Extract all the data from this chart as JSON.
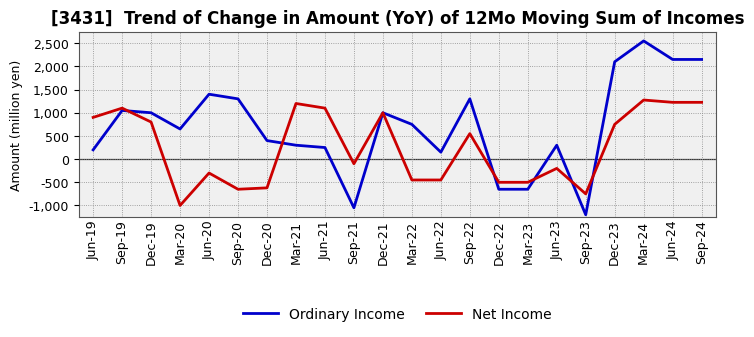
{
  "title": "[3431]  Trend of Change in Amount (YoY) of 12Mo Moving Sum of Incomes",
  "ylabel": "Amount (million yen)",
  "x_labels": [
    "Jun-19",
    "Sep-19",
    "Dec-19",
    "Mar-20",
    "Jun-20",
    "Sep-20",
    "Dec-20",
    "Mar-21",
    "Jun-21",
    "Sep-21",
    "Dec-21",
    "Mar-22",
    "Jun-22",
    "Sep-22",
    "Dec-22",
    "Mar-23",
    "Jun-23",
    "Sep-23",
    "Dec-23",
    "Mar-24",
    "Jun-24",
    "Sep-24"
  ],
  "ordinary_income": [
    200,
    1050,
    1000,
    650,
    1400,
    1300,
    400,
    300,
    250,
    -1050,
    1000,
    750,
    150,
    1300,
    -650,
    -650,
    300,
    -1200,
    2100,
    2550,
    2150,
    2150
  ],
  "net_income": [
    900,
    1100,
    800,
    -1000,
    -300,
    -650,
    -620,
    1200,
    1100,
    -100,
    1000,
    -450,
    -450,
    550,
    -500,
    -500,
    -200,
    -750,
    750,
    1275,
    1225,
    1225
  ],
  "ordinary_income_color": "#0000cc",
  "net_income_color": "#cc0000",
  "ylim": [
    -1250,
    2750
  ],
  "yticks": [
    -1000,
    -500,
    0,
    500,
    1000,
    1500,
    2000,
    2500
  ],
  "background_color": "#ffffff",
  "plot_bg_color": "#f0f0f0",
  "grid_color": "#888888",
  "title_fontsize": 12,
  "axis_fontsize": 9,
  "tick_fontsize": 9,
  "legend_labels": [
    "Ordinary Income",
    "Net Income"
  ],
  "line_width": 2.0
}
